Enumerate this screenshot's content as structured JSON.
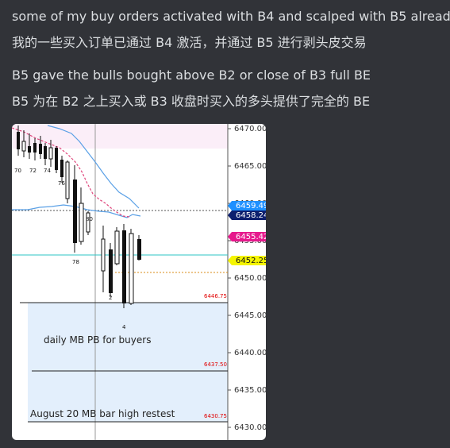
{
  "message": {
    "line1": "some of my buy orders activated with B4 and scalped with B5 already",
    "line2": "我的一些买入订单已通过 B4 激活，并通过 B5 进行剥头皮交易",
    "line3": "B5 gave the bulls bought above B2 or close of B3 full BE",
    "line4": "B5 为在 B2 之上买入或 B3 收盘时买入的多头提供了完全的 BE"
  },
  "colors": {
    "background": "#313338",
    "text": "#dbdee1",
    "price_tag_blue": "#1e90ff",
    "price_tag_navy": "#0d1f6e",
    "price_tag_magenta": "#e6198c",
    "price_tag_yellow": "#f5f500",
    "ema_red": "#e0457b",
    "band_blue": "#5aa0e6",
    "zone_blue": "#e3effc",
    "zone_pink": "#fbeef8",
    "level_red": "#e00000"
  },
  "chart": {
    "price_axis_labels": [
      "6470.00",
      "6465.00",
      "6460.00",
      "6455.00",
      "6450.00",
      "6445.00",
      "6440.00",
      "6435.00",
      "6430.00"
    ],
    "tags": {
      "blue": "6459.49",
      "navy": "6458.24",
      "magenta": "6455.42",
      "yellow": "6452.25"
    },
    "level_labels": {
      "l1": "6446.75",
      "l2": "6437.50",
      "l3": "6430.75"
    },
    "bar_labels": {
      "b70": "70",
      "b72": "72",
      "b74": "74",
      "b76": "76",
      "b78": "78",
      "b80": "80",
      "b2": "2",
      "b4": "4"
    },
    "annotations": {
      "daily": "daily MB PB for buyers",
      "august": "August 20  MB bar high restest"
    }
  }
}
